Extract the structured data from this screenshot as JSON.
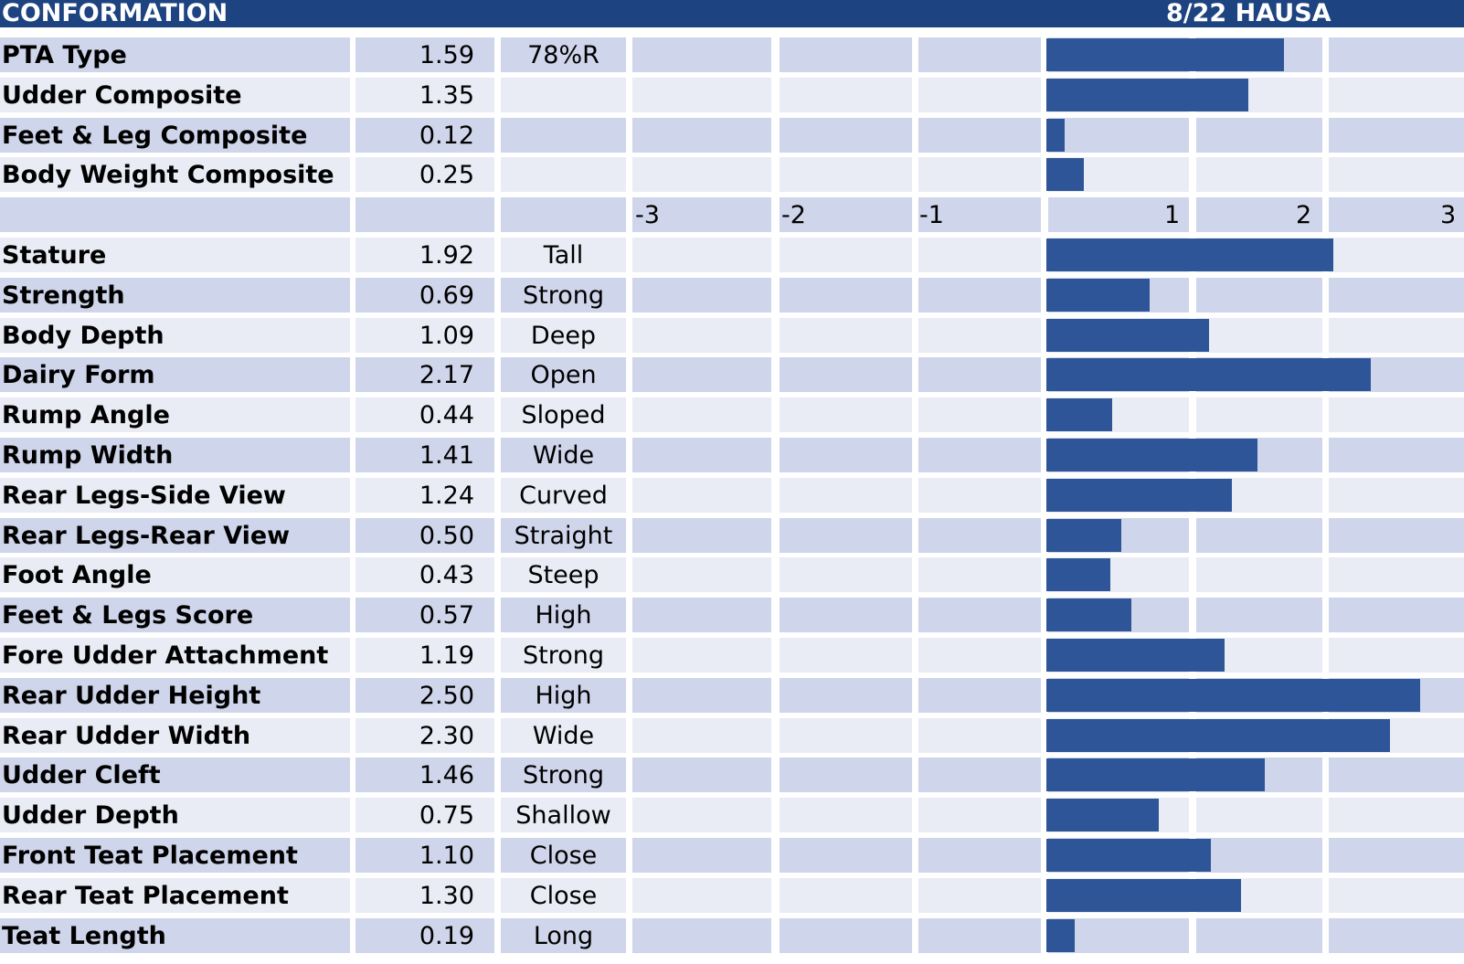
{
  "header": {
    "title": "CONFORMATION",
    "date": "8/22 HAUSA"
  },
  "chart_data": {
    "type": "bar",
    "orientation": "horizontal",
    "xlim": [
      -3,
      3
    ],
    "axis_ticks": [
      "-3",
      "-2",
      "-1",
      "1",
      "2",
      "3"
    ],
    "composites": [
      {
        "name": "PTA Type",
        "value": 1.59,
        "label": "1.59",
        "desc": "78%R"
      },
      {
        "name": "Udder Composite",
        "value": 1.35,
        "label": "1.35",
        "desc": ""
      },
      {
        "name": "Feet & Leg Composite",
        "value": 0.12,
        "label": "0.12",
        "desc": ""
      },
      {
        "name": "Body Weight Composite",
        "value": 0.25,
        "label": "0.25",
        "desc": ""
      }
    ],
    "traits": [
      {
        "name": "Stature",
        "value": 1.92,
        "label": "1.92",
        "desc": "Tall"
      },
      {
        "name": "Strength",
        "value": 0.69,
        "label": "0.69",
        "desc": "Strong"
      },
      {
        "name": "Body Depth",
        "value": 1.09,
        "label": "1.09",
        "desc": "Deep"
      },
      {
        "name": "Dairy Form",
        "value": 2.17,
        "label": "2.17",
        "desc": "Open"
      },
      {
        "name": "Rump Angle",
        "value": 0.44,
        "label": "0.44",
        "desc": "Sloped"
      },
      {
        "name": "Rump Width",
        "value": 1.41,
        "label": "1.41",
        "desc": "Wide"
      },
      {
        "name": "Rear Legs-Side View",
        "value": 1.24,
        "label": "1.24",
        "desc": "Curved"
      },
      {
        "name": "Rear Legs-Rear View",
        "value": 0.5,
        "label": "0.50",
        "desc": "Straight"
      },
      {
        "name": "Foot Angle",
        "value": 0.43,
        "label": "0.43",
        "desc": "Steep"
      },
      {
        "name": "Feet & Legs Score",
        "value": 0.57,
        "label": "0.57",
        "desc": "High"
      },
      {
        "name": "Fore Udder Attachment",
        "value": 1.19,
        "label": "1.19",
        "desc": "Strong"
      },
      {
        "name": "Rear Udder Height",
        "value": 2.5,
        "label": "2.50",
        "desc": "High"
      },
      {
        "name": "Rear Udder Width",
        "value": 2.3,
        "label": "2.30",
        "desc": "Wide"
      },
      {
        "name": "Udder Cleft",
        "value": 1.46,
        "label": "1.46",
        "desc": "Strong"
      },
      {
        "name": "Udder Depth",
        "value": 0.75,
        "label": "0.75",
        "desc": "Shallow"
      },
      {
        "name": "Front Teat Placement",
        "value": 1.1,
        "label": "1.10",
        "desc": "Close"
      },
      {
        "name": "Rear Teat Placement",
        "value": 1.3,
        "label": "1.30",
        "desc": "Close"
      },
      {
        "name": "Teat Length",
        "value": 0.19,
        "label": "0.19",
        "desc": "Long"
      }
    ]
  },
  "colors": {
    "header_bg": "#1d4380",
    "row_dark": "#cfd5ea",
    "row_light": "#e9ecf5",
    "bar": "#2e5597"
  }
}
